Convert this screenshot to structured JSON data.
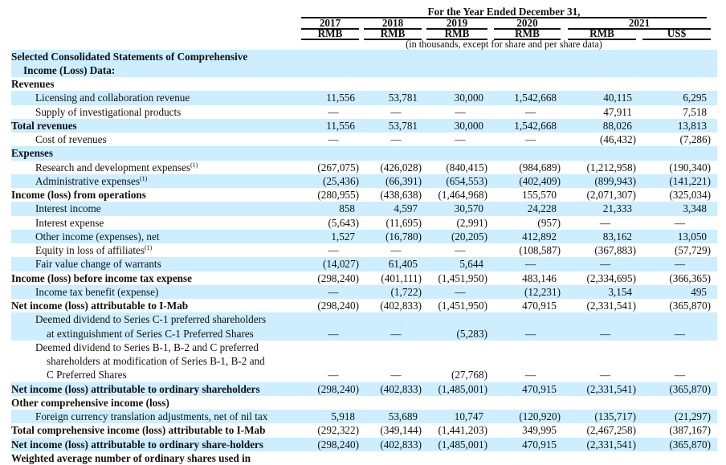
{
  "header": {
    "title": "For the Year Ended December 31,",
    "years": [
      "2017",
      "2018",
      "2019",
      "2020",
      "2021"
    ],
    "currencies": [
      "RMB",
      "RMB",
      "RMB",
      "RMB",
      "RMB",
      "US$"
    ],
    "note": "(in thousands, except for share and per share data)"
  },
  "rows": [
    {
      "lines": [
        "Selected Consolidated Statements of Comprehensive",
        "Income (Loss) Data:"
      ],
      "level": 0,
      "bold": true,
      "values": []
    },
    {
      "lines": [
        "Revenues"
      ],
      "level": 0,
      "bold": true,
      "values": []
    },
    {
      "lines": [
        "Licensing and collaboration revenue"
      ],
      "level": 1,
      "values": [
        "11,556",
        "53,781",
        "30,000",
        "1,542,668",
        "40,115",
        "6,295"
      ]
    },
    {
      "lines": [
        "Supply of investigational products"
      ],
      "level": 1,
      "values": [
        "—",
        "—",
        "—",
        "—",
        "47,911",
        "7,518"
      ]
    },
    {
      "lines": [
        "Total revenues"
      ],
      "level": 0,
      "bold": true,
      "values": [
        "11,556",
        "53,781",
        "30,000",
        "1,542,668",
        "88,026",
        "13,813"
      ]
    },
    {
      "lines": [
        "Cost of revenues"
      ],
      "level": 1,
      "values": [
        "—",
        "—",
        "—",
        "—",
        "(46,432)",
        "(7,286)"
      ]
    },
    {
      "lines": [
        "Expenses"
      ],
      "level": 0,
      "bold": true,
      "values": []
    },
    {
      "lines": [
        "Research and development expenses"
      ],
      "sup": "(1)",
      "level": 1,
      "values": [
        "(267,075)",
        "(426,028)",
        "(840,415)",
        "(984,689)",
        "(1,212,958)",
        "(190,340)"
      ]
    },
    {
      "lines": [
        "Administrative expenses"
      ],
      "sup": "(1)",
      "level": 1,
      "values": [
        "(25,436)",
        "(66,391)",
        "(654,553)",
        "(402,409)",
        "(899,943)",
        "(141,221)"
      ]
    },
    {
      "lines": [
        "Income (loss) from operations"
      ],
      "level": 0,
      "bold": true,
      "values": [
        "(280,955)",
        "(438,638)",
        "(1,464,968)",
        "155,570",
        "(2,071,307)",
        "(325,034)"
      ]
    },
    {
      "lines": [
        "Interest income"
      ],
      "level": 1,
      "values": [
        "858",
        "4,597",
        "30,570",
        "24,228",
        "21,333",
        "3,348"
      ]
    },
    {
      "lines": [
        "Interest expense"
      ],
      "level": 1,
      "values": [
        "(5,643)",
        "(11,695)",
        "(2,991)",
        "(957)",
        "—",
        "—"
      ]
    },
    {
      "lines": [
        "Other income (expenses), net"
      ],
      "level": 1,
      "values": [
        "1,527",
        "(16,780)",
        "(20,205)",
        "412,892",
        "83,162",
        "13,050"
      ]
    },
    {
      "lines": [
        "Equity in loss of affiliates"
      ],
      "sup": "(1)",
      "level": 1,
      "values": [
        "—",
        "—",
        "—",
        "(108,587)",
        "(367,883)",
        "(57,729)"
      ]
    },
    {
      "lines": [
        "Fair value change of warrants"
      ],
      "level": 1,
      "values": [
        "(14,027)",
        "61,405",
        "5,644",
        "—",
        "—",
        "—"
      ]
    },
    {
      "lines": [
        "Income (loss) before income tax expense"
      ],
      "level": 0,
      "bold": true,
      "values": [
        "(298,240)",
        "(401,111)",
        "(1,451,950)",
        "483,146",
        "(2,334,695)",
        "(366,365)"
      ]
    },
    {
      "lines": [
        "Income tax benefit (expense)"
      ],
      "level": 1,
      "values": [
        "—",
        "(1,722)",
        "—",
        "(12,231)",
        "3,154",
        "495"
      ]
    },
    {
      "lines": [
        "Net income (loss) attributable to I-Mab"
      ],
      "level": 0,
      "bold": true,
      "values": [
        "(298,240)",
        "(402,833)",
        "(1,451,950)",
        "470,915",
        "(2,331,541)",
        "(365,870)"
      ]
    },
    {
      "lines": [
        "Deemed dividend to Series C-1 preferred shareholders",
        "at extinguishment of Series C-1 Preferred Shares"
      ],
      "level": 1,
      "values": [
        "—",
        "—",
        "(5,283)",
        "—",
        "—",
        "—"
      ]
    },
    {
      "lines": [
        "Deemed dividend to Series B-1, B-2 and C preferred",
        "shareholders at modification of Series B-1, B-2 and",
        "C Preferred Shares"
      ],
      "level": 1,
      "values": [
        "—",
        "—",
        "(27,768)",
        "—",
        "—",
        "—"
      ]
    },
    {
      "lines": [
        "Net income (loss) attributable to ordinary shareholders"
      ],
      "level": 0,
      "bold": true,
      "values": [
        "(298,240)",
        "(402,833)",
        "(1,485,001)",
        "470,915",
        "(2,331,541)",
        "(365,870)"
      ]
    },
    {
      "lines": [
        "Other comprehensive income (loss)"
      ],
      "level": 0,
      "bold": true,
      "values": []
    },
    {
      "lines": [
        "Foreign currency translation adjustments, net of nil tax"
      ],
      "level": 1,
      "values": [
        "5,918",
        "53,689",
        "10,747",
        "(120,920)",
        "(135,717)",
        "(21,297)"
      ]
    },
    {
      "lines": [
        "Total comprehensive income (loss) attributable to I-Mab"
      ],
      "level": 0,
      "bold": true,
      "values": [
        "(292,322)",
        "(349,144)",
        "(1,441,203)",
        "349,995",
        "(2,467,258)",
        "(387,167)"
      ]
    },
    {
      "lines": [
        "Net income (loss) attributable to ordinary share-holders"
      ],
      "level": 0,
      "bold": true,
      "values": [
        "(298,240)",
        "(402,833)",
        "(1,485,001)",
        "470,915",
        "(2,331,541)",
        "(365,870)"
      ]
    },
    {
      "lines": [
        "Weighted average number of ordinary shares used in"
      ],
      "level": 0,
      "bold": true,
      "values": []
    }
  ],
  "colors": {
    "stripe": "#cceeff"
  }
}
